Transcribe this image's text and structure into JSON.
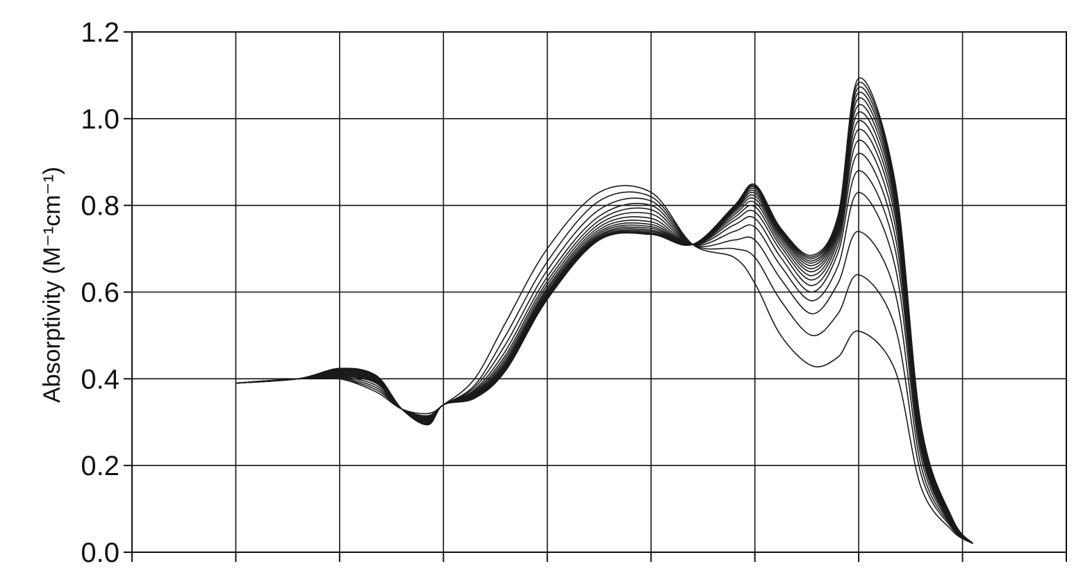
{
  "chart_data": {
    "type": "line",
    "title": "",
    "xlabel": "",
    "ylabel": "Absorptivity (M⁻¹cm⁻¹)",
    "ylim": [
      0,
      1.2
    ],
    "yticks": [
      "0.0",
      "0.2",
      "0.4",
      "0.6",
      "0.8",
      "1.0",
      "1.2"
    ],
    "x_gridlines": 8,
    "x_tick_labels": [],
    "grid": true,
    "legend": "none",
    "line_color": "#1a1a1a",
    "series_count": 16,
    "x_points": [
      1.0,
      1.6,
      2.0,
      2.35,
      2.6,
      2.85,
      3.0,
      3.3,
      3.6,
      4.0,
      4.5,
      5.0,
      5.4,
      5.8,
      6.0,
      6.25,
      6.55,
      6.8,
      7.0,
      7.35,
      7.6,
      7.9,
      8.1
    ],
    "series": [
      {
        "values": [
          0.39,
          0.4,
          0.4,
          0.37,
          0.33,
          0.32,
          0.34,
          0.4,
          0.53,
          0.7,
          0.83,
          0.83,
          0.71,
          0.68,
          0.62,
          0.5,
          0.43,
          0.45,
          0.51,
          0.42,
          0.15,
          0.05,
          0.02
        ]
      },
      {
        "values": [
          0.39,
          0.4,
          0.4,
          0.375,
          0.33,
          0.315,
          0.34,
          0.385,
          0.5,
          0.67,
          0.81,
          0.82,
          0.71,
          0.7,
          0.68,
          0.58,
          0.5,
          0.55,
          0.64,
          0.52,
          0.18,
          0.055,
          0.02
        ]
      },
      {
        "values": [
          0.39,
          0.4,
          0.402,
          0.38,
          0.33,
          0.313,
          0.34,
          0.38,
          0.48,
          0.65,
          0.79,
          0.81,
          0.71,
          0.72,
          0.72,
          0.63,
          0.55,
          0.62,
          0.74,
          0.6,
          0.2,
          0.058,
          0.02
        ]
      },
      {
        "values": [
          0.39,
          0.4,
          0.404,
          0.385,
          0.33,
          0.311,
          0.34,
          0.375,
          0.465,
          0.635,
          0.775,
          0.8,
          0.71,
          0.74,
          0.75,
          0.66,
          0.58,
          0.66,
          0.83,
          0.66,
          0.22,
          0.06,
          0.02
        ]
      },
      {
        "values": [
          0.39,
          0.4,
          0.406,
          0.39,
          0.33,
          0.309,
          0.34,
          0.372,
          0.455,
          0.625,
          0.765,
          0.79,
          0.71,
          0.755,
          0.77,
          0.68,
          0.6,
          0.69,
          0.88,
          0.7,
          0.235,
          0.062,
          0.02
        ]
      },
      {
        "values": [
          0.39,
          0.4,
          0.408,
          0.392,
          0.33,
          0.307,
          0.34,
          0.369,
          0.448,
          0.617,
          0.757,
          0.78,
          0.71,
          0.765,
          0.785,
          0.695,
          0.615,
          0.705,
          0.92,
          0.73,
          0.245,
          0.064,
          0.02
        ]
      },
      {
        "values": [
          0.39,
          0.4,
          0.41,
          0.394,
          0.33,
          0.305,
          0.34,
          0.367,
          0.442,
          0.61,
          0.75,
          0.77,
          0.71,
          0.772,
          0.797,
          0.705,
          0.628,
          0.718,
          0.95,
          0.755,
          0.255,
          0.066,
          0.02
        ]
      },
      {
        "values": [
          0.39,
          0.4,
          0.412,
          0.396,
          0.33,
          0.303,
          0.34,
          0.365,
          0.437,
          0.605,
          0.744,
          0.762,
          0.71,
          0.778,
          0.807,
          0.713,
          0.638,
          0.728,
          0.975,
          0.775,
          0.262,
          0.068,
          0.02
        ]
      },
      {
        "values": [
          0.39,
          0.4,
          0.414,
          0.398,
          0.33,
          0.301,
          0.34,
          0.363,
          0.433,
          0.6,
          0.739,
          0.756,
          0.71,
          0.783,
          0.815,
          0.72,
          0.647,
          0.737,
          0.995,
          0.79,
          0.268,
          0.07,
          0.02
        ]
      },
      {
        "values": [
          0.39,
          0.4,
          0.416,
          0.4,
          0.33,
          0.3,
          0.34,
          0.361,
          0.43,
          0.596,
          0.735,
          0.751,
          0.71,
          0.787,
          0.822,
          0.726,
          0.654,
          0.745,
          1.015,
          0.803,
          0.274,
          0.072,
          0.02
        ]
      },
      {
        "values": [
          0.39,
          0.4,
          0.418,
          0.402,
          0.33,
          0.299,
          0.34,
          0.36,
          0.427,
          0.593,
          0.731,
          0.747,
          0.71,
          0.79,
          0.828,
          0.731,
          0.661,
          0.752,
          1.032,
          0.815,
          0.279,
          0.074,
          0.02
        ]
      },
      {
        "values": [
          0.39,
          0.4,
          0.42,
          0.404,
          0.33,
          0.298,
          0.34,
          0.359,
          0.425,
          0.59,
          0.728,
          0.743,
          0.71,
          0.793,
          0.833,
          0.735,
          0.667,
          0.758,
          1.047,
          0.825,
          0.283,
          0.075,
          0.02
        ]
      },
      {
        "values": [
          0.39,
          0.4,
          0.421,
          0.405,
          0.33,
          0.297,
          0.34,
          0.358,
          0.423,
          0.588,
          0.725,
          0.74,
          0.71,
          0.795,
          0.838,
          0.739,
          0.672,
          0.763,
          1.06,
          0.834,
          0.287,
          0.076,
          0.02
        ]
      },
      {
        "values": [
          0.39,
          0.4,
          0.422,
          0.406,
          0.33,
          0.296,
          0.34,
          0.357,
          0.421,
          0.586,
          0.723,
          0.737,
          0.71,
          0.797,
          0.842,
          0.742,
          0.677,
          0.768,
          1.072,
          0.842,
          0.29,
          0.077,
          0.02
        ]
      },
      {
        "values": [
          0.39,
          0.4,
          0.423,
          0.407,
          0.33,
          0.295,
          0.34,
          0.356,
          0.42,
          0.584,
          0.721,
          0.735,
          0.71,
          0.798,
          0.845,
          0.745,
          0.681,
          0.772,
          1.083,
          0.849,
          0.293,
          0.078,
          0.02
        ]
      },
      {
        "values": [
          0.39,
          0.4,
          0.424,
          0.408,
          0.33,
          0.294,
          0.34,
          0.355,
          0.419,
          0.583,
          0.72,
          0.733,
          0.71,
          0.799,
          0.848,
          0.747,
          0.685,
          0.776,
          1.093,
          0.855,
          0.295,
          0.079,
          0.02
        ]
      }
    ]
  }
}
